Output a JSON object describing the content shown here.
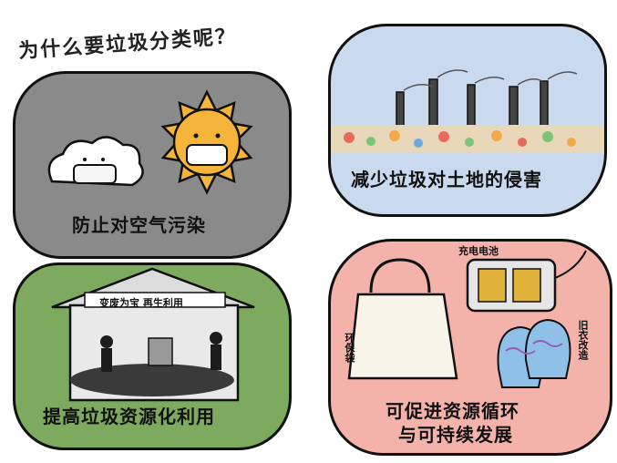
{
  "title": "为什么要垃圾分类呢？",
  "panels": {
    "air": {
      "caption": "防止对空气污染"
    },
    "soil": {
      "caption": "减少垃圾对土地的侵害"
    },
    "resource": {
      "caption": "提高垃圾资源化利用",
      "sign": "变废为宝  再生利用"
    },
    "recycle": {
      "caption_line1": "可促进资源循环",
      "caption_line2": "与可持续发展",
      "battery_label": "充电电池",
      "bag_label": "环保袋",
      "gloves_label": "旧衣改造"
    }
  },
  "colors": {
    "air_bg": "#8a8a8a",
    "soil_bg": "#c9d9ee",
    "resource_bg": "#7daa5e",
    "recycle_bg": "#f3b3ab",
    "sun": "#f5b43a",
    "glove": "#8fc0e8"
  }
}
